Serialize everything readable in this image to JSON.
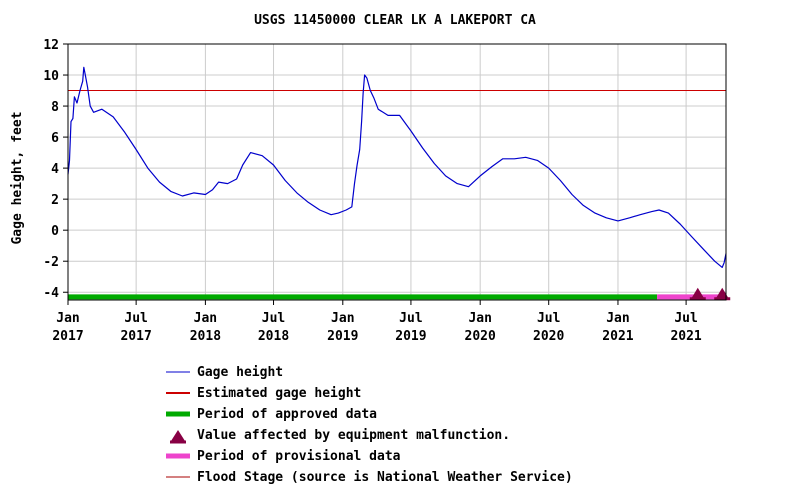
{
  "chart_data": {
    "type": "line",
    "title": "USGS 11450000 CLEAR LK A LAKEPORT CA",
    "ylabel": "Gage height, feet",
    "xlabel": "",
    "ylim": [
      -4.5,
      12
    ],
    "yticks": [
      12,
      10,
      8,
      6,
      4,
      2,
      0,
      -2,
      -4
    ],
    "xlim": [
      "2017-01-01",
      "2021-10-15"
    ],
    "xticks": [
      {
        "date": "2017-01-01",
        "line1": "Jan",
        "line2": "2017"
      },
      {
        "date": "2017-07-01",
        "line1": "Jul",
        "line2": "2017"
      },
      {
        "date": "2018-01-01",
        "line1": "Jan",
        "line2": "2018"
      },
      {
        "date": "2018-07-01",
        "line1": "Jul",
        "line2": "2018"
      },
      {
        "date": "2019-01-01",
        "line1": "Jan",
        "line2": "2019"
      },
      {
        "date": "2019-07-01",
        "line1": "Jul",
        "line2": "2019"
      },
      {
        "date": "2020-01-01",
        "line1": "Jan",
        "line2": "2020"
      },
      {
        "date": "2020-07-01",
        "line1": "Jul",
        "line2": "2020"
      },
      {
        "date": "2021-01-01",
        "line1": "Jan",
        "line2": "2021"
      },
      {
        "date": "2021-07-01",
        "line1": "Jul",
        "line2": "2021"
      }
    ],
    "grid": true,
    "series": [
      {
        "name": "Gage height",
        "color": "#0000cc",
        "points": [
          [
            "2017-01-01",
            3.6
          ],
          [
            "2017-01-05",
            4.5
          ],
          [
            "2017-01-09",
            7.0
          ],
          [
            "2017-01-14",
            7.2
          ],
          [
            "2017-01-18",
            8.6
          ],
          [
            "2017-01-25",
            8.2
          ],
          [
            "2017-02-02",
            9.0
          ],
          [
            "2017-02-09",
            9.6
          ],
          [
            "2017-02-12",
            10.5
          ],
          [
            "2017-02-16",
            10.0
          ],
          [
            "2017-02-22",
            9.2
          ],
          [
            "2017-03-01",
            8.0
          ],
          [
            "2017-03-10",
            7.6
          ],
          [
            "2017-04-01",
            7.8
          ],
          [
            "2017-05-01",
            7.3
          ],
          [
            "2017-06-01",
            6.3
          ],
          [
            "2017-07-01",
            5.2
          ],
          [
            "2017-08-01",
            4.0
          ],
          [
            "2017-09-01",
            3.1
          ],
          [
            "2017-10-01",
            2.5
          ],
          [
            "2017-11-01",
            2.2
          ],
          [
            "2017-12-01",
            2.4
          ],
          [
            "2018-01-01",
            2.3
          ],
          [
            "2018-01-20",
            2.6
          ],
          [
            "2018-02-05",
            3.1
          ],
          [
            "2018-03-01",
            3.0
          ],
          [
            "2018-03-25",
            3.3
          ],
          [
            "2018-04-10",
            4.2
          ],
          [
            "2018-05-01",
            5.0
          ],
          [
            "2018-06-01",
            4.8
          ],
          [
            "2018-07-01",
            4.2
          ],
          [
            "2018-08-01",
            3.2
          ],
          [
            "2018-09-01",
            2.4
          ],
          [
            "2018-10-01",
            1.8
          ],
          [
            "2018-11-01",
            1.3
          ],
          [
            "2018-12-01",
            1.0
          ],
          [
            "2018-12-20",
            1.1
          ],
          [
            "2019-01-10",
            1.3
          ],
          [
            "2019-01-25",
            1.5
          ],
          [
            "2019-02-01",
            3.0
          ],
          [
            "2019-02-08",
            4.2
          ],
          [
            "2019-02-15",
            5.2
          ],
          [
            "2019-02-20",
            7.0
          ],
          [
            "2019-02-24",
            8.8
          ],
          [
            "2019-02-28",
            10.0
          ],
          [
            "2019-03-06",
            9.8
          ],
          [
            "2019-03-15",
            9.0
          ],
          [
            "2019-03-25",
            8.5
          ],
          [
            "2019-04-05",
            7.8
          ],
          [
            "2019-05-01",
            7.4
          ],
          [
            "2019-06-01",
            7.4
          ],
          [
            "2019-07-01",
            6.4
          ],
          [
            "2019-08-01",
            5.3
          ],
          [
            "2019-09-01",
            4.3
          ],
          [
            "2019-10-01",
            3.5
          ],
          [
            "2019-11-01",
            3.0
          ],
          [
            "2019-12-01",
            2.8
          ],
          [
            "2020-01-01",
            3.5
          ],
          [
            "2020-02-01",
            4.1
          ],
          [
            "2020-03-01",
            4.6
          ],
          [
            "2020-04-01",
            4.6
          ],
          [
            "2020-05-01",
            4.7
          ],
          [
            "2020-06-01",
            4.5
          ],
          [
            "2020-07-01",
            4.0
          ],
          [
            "2020-08-01",
            3.2
          ],
          [
            "2020-09-01",
            2.3
          ],
          [
            "2020-10-01",
            1.6
          ],
          [
            "2020-11-01",
            1.1
          ],
          [
            "2020-12-01",
            0.8
          ],
          [
            "2021-01-01",
            0.6
          ],
          [
            "2021-02-01",
            0.8
          ],
          [
            "2021-03-01",
            1.0
          ],
          [
            "2021-04-01",
            1.2
          ],
          [
            "2021-04-20",
            1.3
          ],
          [
            "2021-05-15",
            1.1
          ],
          [
            "2021-06-15",
            0.4
          ],
          [
            "2021-07-15",
            -0.4
          ],
          [
            "2021-08-15",
            -1.2
          ],
          [
            "2021-09-15",
            -2.0
          ],
          [
            "2021-10-05",
            -2.4
          ],
          [
            "2021-10-10",
            -2.1
          ],
          [
            "2021-10-15",
            -1.5
          ]
        ]
      }
    ],
    "flood_stage": {
      "value": 9.0,
      "color": "#cc0000"
    },
    "approved_period": {
      "start": "2017-01-01",
      "end": "2021-04-15",
      "color": "#00aa00",
      "y": -4.3
    },
    "provisional_period": {
      "start": "2021-04-15",
      "end": "2021-10-15",
      "color": "#ee44cc",
      "y": -4.3
    },
    "malfunction_markers": [
      {
        "date": "2021-08-01",
        "y": -4.1
      },
      {
        "date": "2021-10-05",
        "y": -4.1
      }
    ],
    "legend": {
      "placement": "bottom",
      "entries": [
        {
          "label": "Gage height",
          "kind": "thin-line",
          "color": "#0000cc"
        },
        {
          "label": "Estimated gage height",
          "kind": "medium-line",
          "color": "#cc0000"
        },
        {
          "label": "Period of approved data",
          "kind": "thick-line",
          "color": "#00aa00"
        },
        {
          "label": "Value affected by equipment malfunction.",
          "kind": "triangle",
          "color": "#880044"
        },
        {
          "label": "Period of provisional data",
          "kind": "thick-line",
          "color": "#ee44cc"
        },
        {
          "label": "Flood Stage (source is National Weather Service)",
          "kind": "thin-line",
          "color": "#aa0000"
        }
      ]
    }
  }
}
